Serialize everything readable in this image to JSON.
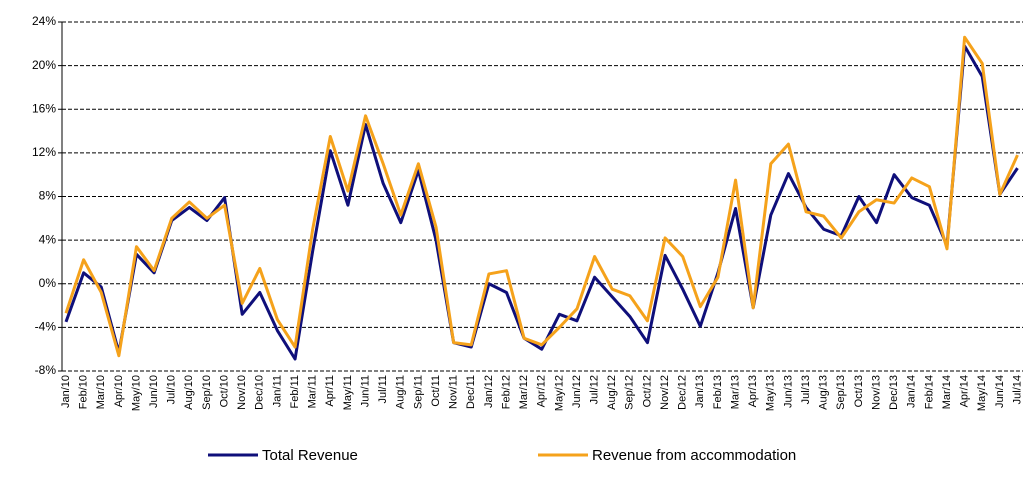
{
  "chart_data": {
    "type": "line",
    "categories": [
      "Jan/10",
      "Feb/10",
      "Mar/10",
      "Apr/10",
      "May/10",
      "Jun/10",
      "Jul/10",
      "Aug/10",
      "Sep/10",
      "Oct/10",
      "Nov/10",
      "Dec/10",
      "Jan/11",
      "Feb/11",
      "Mar/11",
      "Apr/11",
      "May/11",
      "Jun/11",
      "Jul/11",
      "Aug/11",
      "Sep/11",
      "Oct/11",
      "Nov/11",
      "Dec/11",
      "Jan/12",
      "Feb/12",
      "Mar/12",
      "Apr/12",
      "May/12",
      "Jun/12",
      "Jul/12",
      "Aug/12",
      "Sep/12",
      "Oct/12",
      "Nov/12",
      "Dec/12",
      "Jan/13",
      "Feb/13",
      "Mar/13",
      "Apr/13",
      "May/13",
      "Jun/13",
      "Jul/13",
      "Aug/13",
      "Sep/13",
      "Oct/13",
      "Nov/13",
      "Dec/13",
      "Jan/14",
      "Feb/14",
      "Mar/14",
      "Apr/14",
      "May/14",
      "Jun/14",
      "Jul/14"
    ],
    "series": [
      {
        "name": "Total Revenue",
        "color": "#0f0f7a",
        "values": [
          -3.5,
          1,
          -0.3,
          -6.3,
          2.7,
          1,
          5.8,
          7,
          5.8,
          7.9,
          -2.8,
          -0.8,
          -4.3,
          -6.9,
          3,
          12.2,
          7.2,
          14.6,
          9.2,
          5.6,
          10.4,
          4,
          -5.4,
          -5.8,
          0,
          -0.8,
          -5,
          -6,
          -2.8,
          -3.4,
          0.6,
          -1.2,
          -3,
          -5.4,
          2.6,
          -0.5,
          -3.9,
          1,
          6.9,
          -2.2,
          6.3,
          10.1,
          7,
          5,
          4.4,
          8,
          5.6,
          10,
          7.9,
          7.2,
          3.5,
          21.8,
          19,
          8.2,
          10.6
        ]
      },
      {
        "name": "Revenue from accommodation",
        "color": "#f5a21b",
        "values": [
          -2.7,
          2.2,
          -0.8,
          -6.6,
          3.4,
          1.2,
          6,
          7.5,
          6,
          7.2,
          -1.8,
          1.4,
          -3.3,
          -5.8,
          5,
          13.5,
          8.5,
          15.4,
          11,
          6.3,
          11,
          5.2,
          -5.4,
          -5.6,
          0.9,
          1.2,
          -5,
          -5.6,
          -4,
          -2.3,
          2.5,
          -0.5,
          -1.1,
          -3.4,
          4.2,
          2.5,
          -2.1,
          0.6,
          9.5,
          -2.2,
          11,
          12.8,
          6.6,
          6.2,
          4.2,
          6.6,
          7.7,
          7.4,
          9.7,
          8.9,
          3.2,
          22.6,
          20.2,
          8.2,
          11.8
        ]
      }
    ],
    "ylim": [
      -8,
      24
    ],
    "yticks": [
      {
        "value": -8,
        "label": "-8%"
      },
      {
        "value": -4,
        "label": "-4%"
      },
      {
        "value": 0,
        "label": "0%"
      },
      {
        "value": 4,
        "label": "4%"
      },
      {
        "value": 8,
        "label": "8%"
      },
      {
        "value": 12,
        "label": "12%"
      },
      {
        "value": 16,
        "label": "16%"
      },
      {
        "value": 20,
        "label": "20%"
      },
      {
        "value": 24,
        "label": "24%"
      }
    ],
    "grid": true
  }
}
